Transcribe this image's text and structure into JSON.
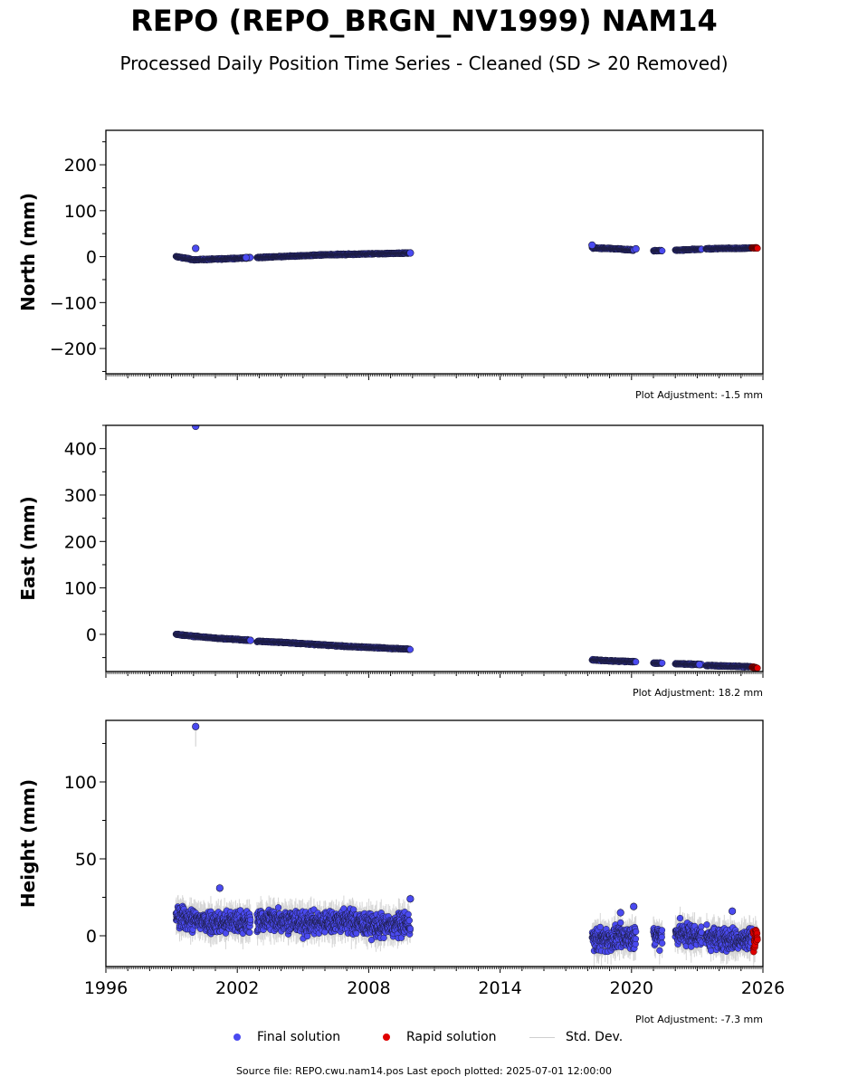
{
  "title": "REPO (REPO_BRGN_NV1999) NAM14",
  "subtitle": "Processed Daily Position Time Series - Cleaned (SD > 20 Removed)",
  "footer": "Source file: REPO.cwu.nam14.pos  Last epoch plotted: 2025-07-01 12:00:00",
  "colors": {
    "final": "#4a4af0",
    "rapid": "#e00000",
    "std": "#c8c8c8",
    "edge": "#1a1a3a"
  },
  "legend": [
    {
      "label": "Final solution",
      "marker": "dot",
      "color": "#4a4af0"
    },
    {
      "label": "Rapid solution",
      "marker": "dot",
      "color": "#e00000"
    },
    {
      "label": "Std. Dev.",
      "marker": "line",
      "color": "#cfcfcf"
    }
  ],
  "chart_data": [
    {
      "type": "scatter",
      "ylabel": "North (mm)",
      "adjustment": "Plot Adjustment: -1.5 mm",
      "xlim": [
        1996,
        2026
      ],
      "ylim": [
        -255,
        275
      ],
      "y_ticks": [
        -200,
        -100,
        0,
        100,
        200
      ],
      "y_tick_labels": [
        "−200",
        "−100",
        "0",
        "100",
        "200"
      ],
      "x_ticks": [],
      "x_tick_labels": [],
      "spread": 1.5,
      "std_scale": 1.0,
      "segments": [
        {
          "series": "final",
          "x": [
            1999.2,
            1999.6,
            2000.0,
            2000.6,
            2001.2,
            2001.8,
            2002.4,
            2002.6
          ],
          "y": [
            0,
            -3,
            -7,
            -6,
            -5,
            -4,
            -3,
            -2
          ]
        },
        {
          "series": "final",
          "x": [
            2002.9,
            2004.0,
            2005.0,
            2006.0,
            2007.0,
            2008.0,
            2009.0,
            2009.9
          ],
          "y": [
            -2,
            0,
            2,
            4,
            5,
            6,
            7,
            8
          ]
        },
        {
          "series": "final",
          "x": [
            2018.2,
            2018.8,
            2019.4,
            2020.1
          ],
          "y": [
            19,
            18,
            17,
            14
          ]
        },
        {
          "series": "final",
          "x": [
            2021.0,
            2021.4
          ],
          "y": [
            13,
            13
          ]
        },
        {
          "series": "final",
          "x": [
            2022.0,
            2022.6,
            2023.2
          ],
          "y": [
            14,
            15,
            16
          ]
        },
        {
          "series": "final",
          "x": [
            2023.4,
            2024.2,
            2025.0,
            2025.5
          ],
          "y": [
            17,
            18,
            18,
            19
          ]
        },
        {
          "series": "rapid",
          "x": [
            2025.5,
            2025.75
          ],
          "y": [
            19,
            19
          ]
        }
      ],
      "outliers": [
        {
          "series": "final",
          "x": 2000.1,
          "y": 18,
          "std": 0
        },
        {
          "series": "final",
          "x": 2002.4,
          "y": -2,
          "std": 0
        },
        {
          "series": "final",
          "x": 2009.9,
          "y": 8,
          "std": 0
        },
        {
          "series": "final",
          "x": 2018.2,
          "y": 25,
          "std": 0
        },
        {
          "series": "final",
          "x": 2020.2,
          "y": 17,
          "std": 0
        }
      ]
    },
    {
      "type": "scatter",
      "ylabel": "East (mm)",
      "adjustment": "Plot Adjustment: 18.2 mm",
      "xlim": [
        1996,
        2026
      ],
      "ylim": [
        -80,
        450
      ],
      "y_ticks": [
        0,
        100,
        200,
        300,
        400
      ],
      "y_tick_labels": [
        "0",
        "100",
        "200",
        "300",
        "400"
      ],
      "x_ticks": [],
      "x_tick_labels": [],
      "spread": 1.5,
      "std_scale": 1.0,
      "segments": [
        {
          "series": "final",
          "x": [
            1999.2,
            2000.0,
            2001.0,
            2002.0,
            2002.6
          ],
          "y": [
            0,
            -4,
            -8,
            -11,
            -13
          ]
        },
        {
          "series": "final",
          "x": [
            2002.9,
            2004.0,
            2005.0,
            2006.0,
            2007.0,
            2008.0,
            2009.0,
            2009.9
          ],
          "y": [
            -15,
            -17,
            -20,
            -23,
            -26,
            -28,
            -30,
            -32
          ]
        },
        {
          "series": "final",
          "x": [
            2018.2,
            2019.0,
            2020.2
          ],
          "y": [
            -55,
            -57,
            -59
          ]
        },
        {
          "series": "final",
          "x": [
            2021.0,
            2021.4
          ],
          "y": [
            -62,
            -62
          ]
        },
        {
          "series": "final",
          "x": [
            2022.0,
            2022.6,
            2023.2
          ],
          "y": [
            -63,
            -64,
            -65
          ]
        },
        {
          "series": "final",
          "x": [
            2023.4,
            2024.2,
            2025.0,
            2025.5
          ],
          "y": [
            -67,
            -68,
            -69,
            -70
          ]
        },
        {
          "series": "rapid",
          "x": [
            2025.5,
            2025.75
          ],
          "y": [
            -71,
            -72
          ]
        }
      ],
      "outliers": [
        {
          "series": "final",
          "x": 2000.1,
          "y": 448,
          "std": 0
        },
        {
          "series": "final",
          "x": 2002.6,
          "y": -13,
          "std": 0
        },
        {
          "series": "final",
          "x": 2023.1,
          "y": -65,
          "std": 0
        }
      ]
    },
    {
      "type": "scatter",
      "ylabel": "Height (mm)",
      "adjustment": "Plot Adjustment: -7.3 mm",
      "xlim": [
        1996,
        2026
      ],
      "ylim": [
        -20,
        140
      ],
      "y_ticks": [
        0,
        50,
        100
      ],
      "y_tick_labels": [
        "0",
        "50",
        "100"
      ],
      "x_ticks": [
        1996,
        2002,
        2008,
        2014,
        2020,
        2026
      ],
      "x_tick_labels": [
        "1996",
        "2002",
        "2008",
        "2014",
        "2020",
        "2026"
      ],
      "spread": 9,
      "std_scale": 7,
      "segments": [
        {
          "series": "final",
          "x": [
            1999.2,
            2000.0,
            2001.0,
            2002.0,
            2002.6
          ],
          "y": [
            12,
            10,
            9,
            9,
            8
          ]
        },
        {
          "series": "final",
          "x": [
            2002.9,
            2004.0,
            2005.0,
            2006.0,
            2007.0,
            2008.0,
            2009.0,
            2009.9
          ],
          "y": [
            10,
            11,
            8,
            9,
            10,
            7,
            6,
            8
          ]
        },
        {
          "series": "final",
          "x": [
            2018.2,
            2019.0,
            2020.2
          ],
          "y": [
            -3,
            -2,
            0
          ]
        },
        {
          "series": "final",
          "x": [
            2021.0,
            2021.4
          ],
          "y": [
            -1,
            1
          ]
        },
        {
          "series": "final",
          "x": [
            2022.0,
            2022.6,
            2023.2
          ],
          "y": [
            2,
            1,
            0
          ]
        },
        {
          "series": "final",
          "x": [
            2023.4,
            2024.2,
            2025.0,
            2025.5
          ],
          "y": [
            -1,
            -2,
            -3,
            -2
          ]
        },
        {
          "series": "rapid",
          "x": [
            2025.55,
            2025.75
          ],
          "y": [
            -2,
            0
          ]
        }
      ],
      "outliers": [
        {
          "series": "final",
          "x": 2000.1,
          "y": 136,
          "std": 13
        },
        {
          "series": "final",
          "x": 2001.2,
          "y": 31,
          "std": 3
        },
        {
          "series": "final",
          "x": 2009.9,
          "y": 24,
          "std": 3
        },
        {
          "series": "final",
          "x": 2020.1,
          "y": 19,
          "std": 3
        },
        {
          "series": "final",
          "x": 2019.5,
          "y": 15,
          "std": 3
        },
        {
          "series": "final",
          "x": 2024.6,
          "y": 16,
          "std": 3
        }
      ]
    }
  ]
}
